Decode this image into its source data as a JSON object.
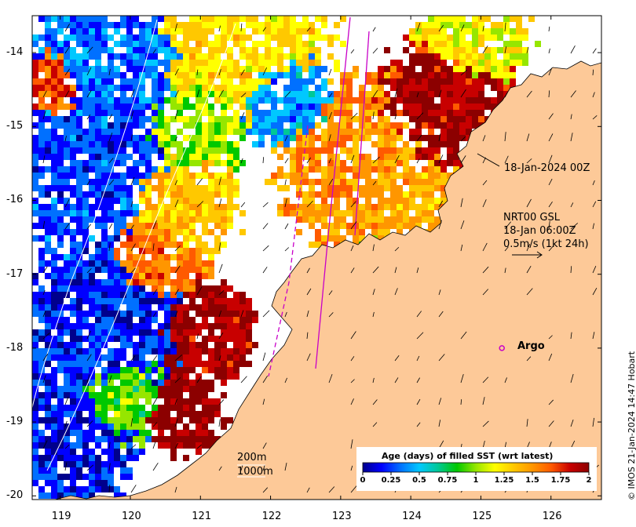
{
  "map": {
    "extent": {
      "lon_min": 118.6,
      "lon_max": 126.72,
      "lat_min": -20.05,
      "lat_max": -13.5
    },
    "x_ticks": [
      "119",
      "120",
      "121",
      "122",
      "123",
      "124",
      "125",
      "126"
    ],
    "y_ticks": [
      "-14",
      "-15",
      "-16",
      "-17",
      "-18",
      "-19",
      "-20"
    ],
    "x_tick_values": [
      119,
      120,
      121,
      122,
      123,
      124,
      125,
      126
    ],
    "y_tick_values": [
      -14,
      -15,
      -16,
      -17,
      -18,
      -19,
      -20
    ],
    "colors": {
      "land": "#fdc998",
      "nodata": "#ffffff",
      "track": "#c800c8",
      "coast_line": "#000000"
    }
  },
  "annotations": {
    "timestamp_label": "18-Jan-2024 00Z",
    "current_title": "NRT00 GSL",
    "current_time": "18-Jan 06:00Z",
    "current_scale": "0.5m/s (1kt 24h)",
    "argo_label": "Argo",
    "argo_lon": 125.3,
    "argo_lat": -18.0,
    "isobath_200": "200m",
    "isobath_1000": "1000m"
  },
  "colorbar": {
    "title": "Age (days) of filled SST (wrt latest)",
    "labels": [
      "0",
      "0.25",
      "0.5",
      "0.75",
      "1",
      "1.25",
      "1.5",
      "1.75",
      "2"
    ],
    "min": 0,
    "max": 2,
    "colors": [
      "#00008c",
      "#0000ff",
      "#0070ff",
      "#00c8ff",
      "#00c896",
      "#00c800",
      "#96e600",
      "#ffff00",
      "#ffc800",
      "#ff9600",
      "#ff5a00",
      "#c80000",
      "#8c0000"
    ]
  },
  "credit": "© IMOS 21-Jan-2024 14:47 Hobart"
}
